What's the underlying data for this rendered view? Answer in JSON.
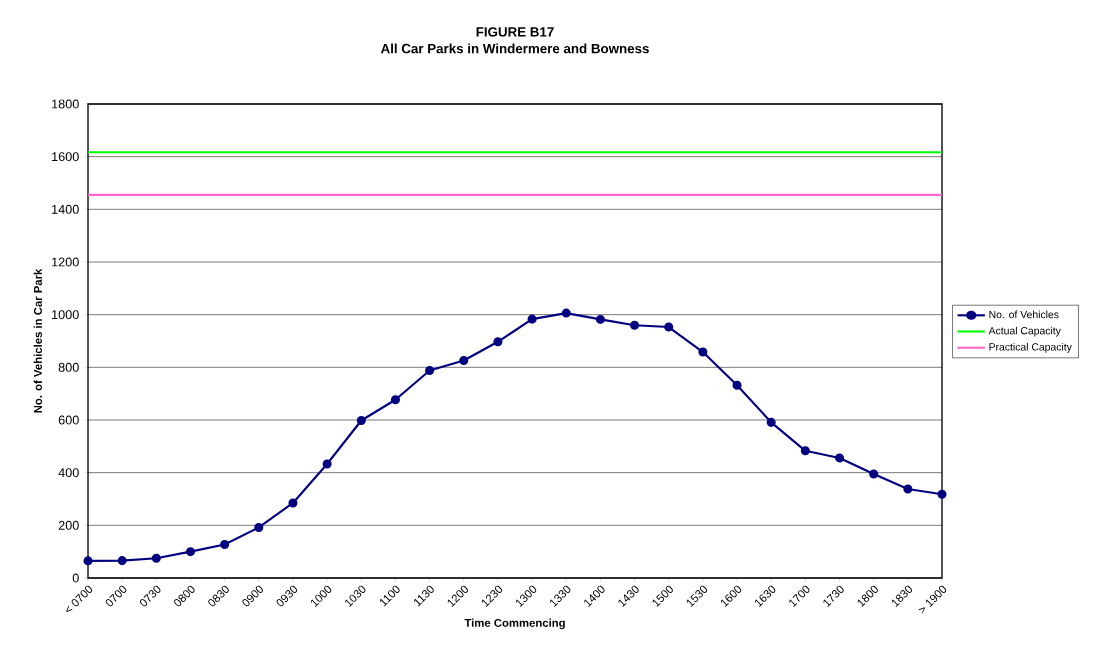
{
  "chart_data": {
    "type": "line",
    "title": "FIGURE B17",
    "subtitle": "All Car Parks in Windermere and Bowness",
    "xlabel": "Time Commencing",
    "ylabel": "No. of Vehicles in Car Park",
    "categories": [
      "< 0700",
      "0700",
      "0730",
      "0800",
      "0830",
      "0900",
      "0930",
      "1000",
      "1030",
      "1100",
      "1130",
      "1200",
      "1230",
      "1300",
      "1330",
      "1400",
      "1430",
      "1500",
      "1530",
      "1600",
      "1630",
      "1700",
      "1730",
      "1800",
      "1830",
      "> 1900"
    ],
    "series": [
      {
        "name": "No. of Vehicles",
        "color": "#000080",
        "marker": "circle",
        "values": [
          65,
          66,
          75,
          100,
          127,
          192,
          285,
          433,
          598,
          677,
          788,
          826,
          897,
          983,
          1006,
          982,
          960,
          953,
          858,
          732,
          591,
          483,
          456,
          395,
          338,
          318
        ]
      },
      {
        "name": "Actual Capacity",
        "color": "#00ff00",
        "marker": "none",
        "values": [
          1617,
          1617,
          1617,
          1617,
          1617,
          1617,
          1617,
          1617,
          1617,
          1617,
          1617,
          1617,
          1617,
          1617,
          1617,
          1617,
          1617,
          1617,
          1617,
          1617,
          1617,
          1617,
          1617,
          1617,
          1617,
          1617
        ]
      },
      {
        "name": "Practical Capacity",
        "color": "#ff66cc",
        "marker": "none",
        "values": [
          1455,
          1455,
          1455,
          1455,
          1455,
          1455,
          1455,
          1455,
          1455,
          1455,
          1455,
          1455,
          1455,
          1455,
          1455,
          1455,
          1455,
          1455,
          1455,
          1455,
          1455,
          1455,
          1455,
          1455,
          1455,
          1455
        ]
      }
    ],
    "ylim": [
      0,
      1800
    ],
    "yticks": [
      0,
      200,
      400,
      600,
      800,
      1000,
      1200,
      1400,
      1600,
      1800
    ],
    "grid": "y",
    "legend": "right"
  }
}
